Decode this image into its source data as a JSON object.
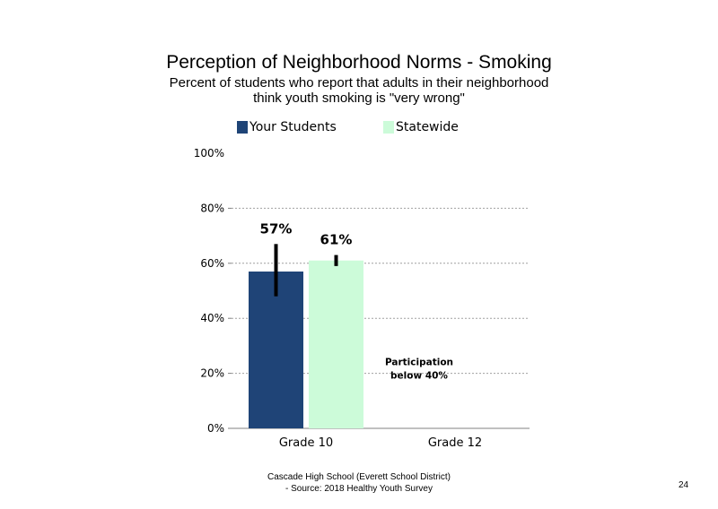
{
  "chart_data": {
    "type": "bar",
    "title": "Perception of Neighborhood Norms - Smoking",
    "subtitle_lines": [
      "Percent of students who report that adults in their neighborhood",
      "think youth smoking is \"very wrong\""
    ],
    "categories": [
      "Grade 10",
      "Grade 12"
    ],
    "series": [
      {
        "name": "Your Students",
        "color": "#1f4477",
        "values": [
          57,
          null
        ],
        "error_low": [
          48,
          null
        ],
        "error_high": [
          67,
          null
        ],
        "labels": [
          "57%",
          ""
        ]
      },
      {
        "name": "Statewide",
        "color": "#ccfbd9",
        "values": [
          61,
          null
        ],
        "error_low": [
          59,
          null
        ],
        "error_high": [
          63,
          null
        ],
        "labels": [
          "61%",
          ""
        ]
      }
    ],
    "ylim": [
      0,
      100
    ],
    "yticks": [
      0,
      20,
      40,
      60,
      80,
      100
    ],
    "ytick_labels": [
      "0%",
      "20%",
      "40%",
      "60%",
      "80%",
      "100%"
    ],
    "grid": true,
    "legend_position": "top",
    "annotation": {
      "category": "Grade 12",
      "lines": [
        "Participation",
        "below 40%"
      ]
    }
  },
  "footer": {
    "line1": "Cascade High School (Everett School District)",
    "line2": "- Source: 2018 Healthy  Youth Survey"
  },
  "page_number": "24"
}
